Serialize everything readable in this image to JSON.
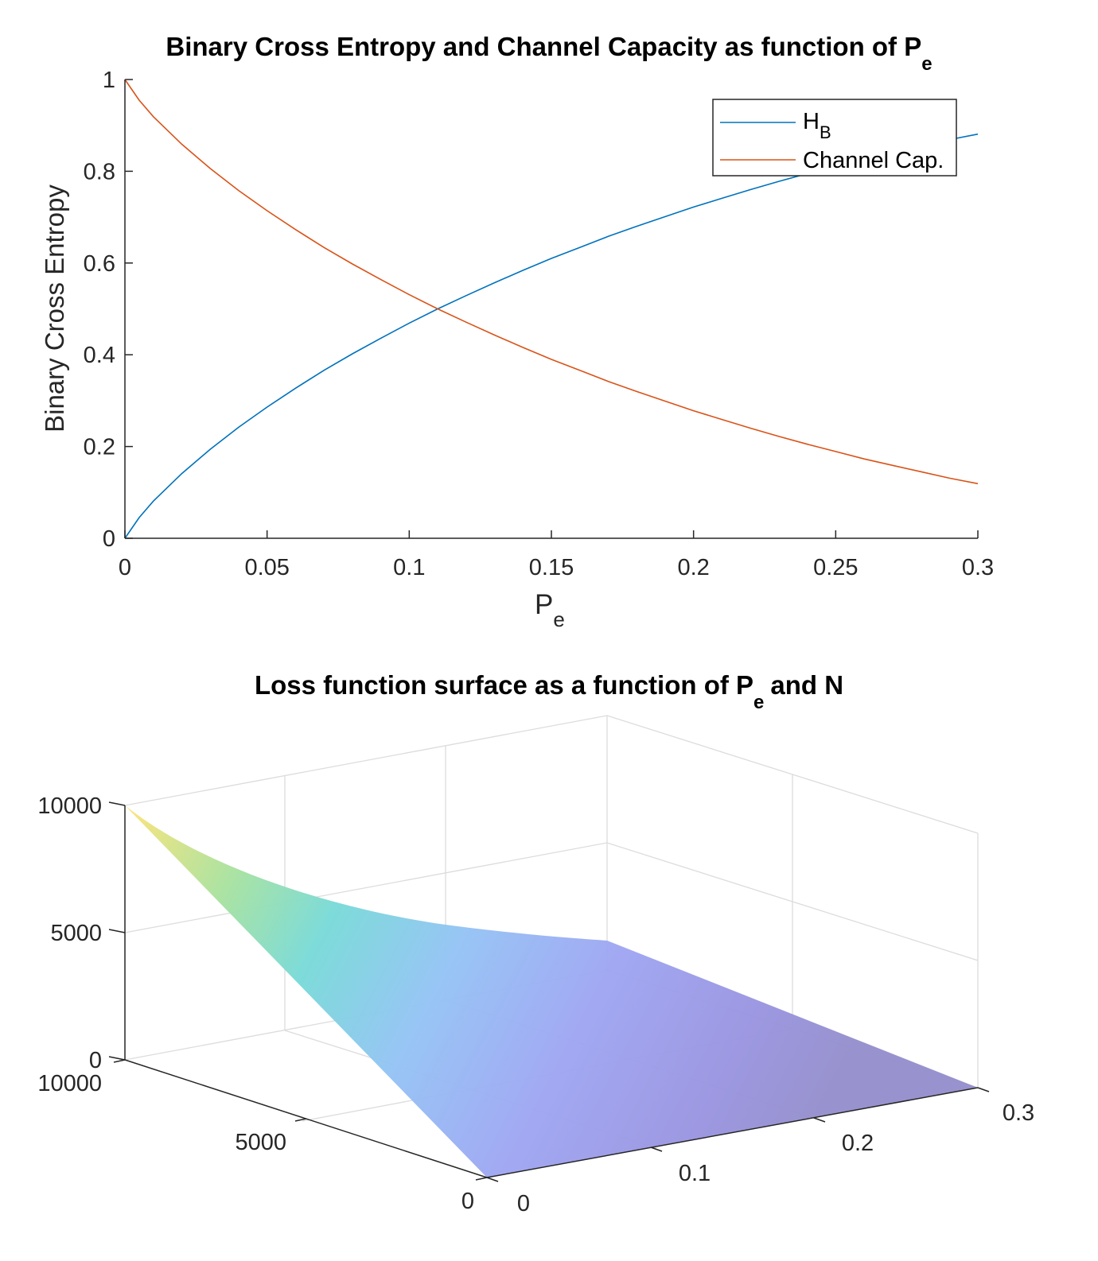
{
  "chart_data": [
    {
      "type": "line",
      "title": "Binary Cross Entropy and Channel Capacity as function of P",
      "title_subscript": "e",
      "xlabel": "P",
      "xlabel_subscript": "e",
      "ylabel": "Binary Cross Entropy",
      "xlim": [
        0,
        0.3
      ],
      "ylim": [
        0,
        1
      ],
      "xticks": [
        "0",
        "0.05",
        "0.1",
        "0.15",
        "0.2",
        "0.25",
        "0.3"
      ],
      "yticks": [
        "0",
        "0.2",
        "0.4",
        "0.6",
        "0.8",
        "1"
      ],
      "grid": false,
      "legend_position": "top-right",
      "x": [
        0,
        0.005,
        0.01,
        0.02,
        0.03,
        0.04,
        0.05,
        0.06,
        0.07,
        0.08,
        0.09,
        0.1,
        0.11,
        0.12,
        0.13,
        0.14,
        0.15,
        0.16,
        0.17,
        0.18,
        0.19,
        0.2,
        0.21,
        0.22,
        0.23,
        0.24,
        0.25,
        0.26,
        0.27,
        0.28,
        0.29,
        0.3
      ],
      "series": [
        {
          "name": "H",
          "name_subscript": "B",
          "color": "#0072BD",
          "values": [
            0,
            0.045,
            0.081,
            0.141,
            0.194,
            0.242,
            0.286,
            0.327,
            0.366,
            0.402,
            0.436,
            0.469,
            0.5,
            0.529,
            0.557,
            0.584,
            0.61,
            0.634,
            0.658,
            0.68,
            0.701,
            0.722,
            0.741,
            0.76,
            0.778,
            0.795,
            0.811,
            0.827,
            0.841,
            0.855,
            0.869,
            0.881
          ]
        },
        {
          "name": "Channel Cap.",
          "color": "#D95319",
          "values": [
            1,
            0.955,
            0.919,
            0.859,
            0.806,
            0.758,
            0.714,
            0.673,
            0.634,
            0.598,
            0.564,
            0.531,
            0.5,
            0.471,
            0.443,
            0.416,
            0.39,
            0.366,
            0.342,
            0.32,
            0.299,
            0.278,
            0.259,
            0.24,
            0.222,
            0.205,
            0.189,
            0.173,
            0.159,
            0.145,
            0.131,
            0.119
          ]
        }
      ]
    },
    {
      "type": "surface",
      "title": "Loss function surface as a function of P",
      "title_subscript": "e",
      "title_suffix": "and N",
      "pe_range": [
        0,
        0.3
      ],
      "n_range": [
        0,
        10000
      ],
      "z_range": [
        0,
        10000
      ],
      "pe_ticks": [
        "0",
        "0.1",
        "0.2",
        "0.3"
      ],
      "n_ticks": [
        "0",
        "5000",
        "10000"
      ],
      "z_ticks": [
        "0",
        "5000",
        "10000"
      ],
      "grid": true,
      "colormap": "parula"
    }
  ]
}
